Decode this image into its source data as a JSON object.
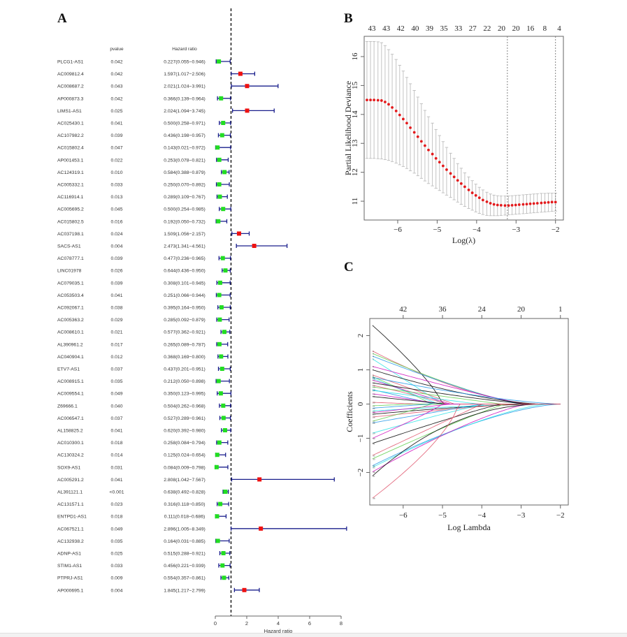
{
  "figure": {
    "panel_labels": {
      "a": "A",
      "b": "B",
      "c": "C"
    },
    "colors": {
      "protective": "#22dd22",
      "risk": "#ee1111",
      "ci_line": "#1a1f8c",
      "reference_line": "#111111",
      "cv_points": "#e31a1c",
      "cv_errorbars": "#bdbdbd",
      "axis": "#555555"
    }
  },
  "chart_data": [
    {
      "id": "forest",
      "type": "scatter",
      "subtype": "forest-plot",
      "title": "",
      "col_headers": {
        "gene": "",
        "pvalue": "pvalue",
        "hr": "Hazard ratio"
      },
      "xlabel": "Hazard ratio",
      "xlim": [
        0,
        8
      ],
      "xticks": [
        0,
        2,
        4,
        6,
        8
      ],
      "reference_line": 1,
      "rows": [
        {
          "gene": "PLCG1-AS1",
          "p": "0.042",
          "hr_text": "0.227(0.055−0.946)",
          "hr": 0.227,
          "lo": 0.055,
          "hi": 0.946
        },
        {
          "gene": "AC009812.4",
          "p": "0.042",
          "hr_text": "1.597(1.017−2.506)",
          "hr": 1.597,
          "lo": 1.017,
          "hi": 2.506
        },
        {
          "gene": "AC008687.2",
          "p": "0.043",
          "hr_text": "2.021(1.024−3.991)",
          "hr": 2.021,
          "lo": 1.024,
          "hi": 3.991
        },
        {
          "gene": "AP000873.3",
          "p": "0.042",
          "hr_text": "0.366(0.139−0.964)",
          "hr": 0.366,
          "lo": 0.139,
          "hi": 0.964
        },
        {
          "gene": "LIMS1-AS1",
          "p": "0.025",
          "hr_text": "2.024(1.094−3.745)",
          "hr": 2.024,
          "lo": 1.094,
          "hi": 3.745
        },
        {
          "gene": "AC025430.1",
          "p": "0.041",
          "hr_text": "0.500(0.258−0.971)",
          "hr": 0.5,
          "lo": 0.258,
          "hi": 0.971
        },
        {
          "gene": "AC107982.2",
          "p": "0.039",
          "hr_text": "0.436(0.198−0.957)",
          "hr": 0.436,
          "lo": 0.198,
          "hi": 0.957
        },
        {
          "gene": "AC015802.4",
          "p": "0.047",
          "hr_text": "0.143(0.021−0.972)",
          "hr": 0.143,
          "lo": 0.021,
          "hi": 0.972
        },
        {
          "gene": "AP001453.1",
          "p": "0.022",
          "hr_text": "0.253(0.078−0.821)",
          "hr": 0.253,
          "lo": 0.078,
          "hi": 0.821
        },
        {
          "gene": "AC124319.1",
          "p": "0.010",
          "hr_text": "0.584(0.388−0.879)",
          "hr": 0.584,
          "lo": 0.388,
          "hi": 0.879
        },
        {
          "gene": "AC005332.1",
          "p": "0.033",
          "hr_text": "0.250(0.070−0.892)",
          "hr": 0.25,
          "lo": 0.07,
          "hi": 0.892
        },
        {
          "gene": "AC116914.1",
          "p": "0.013",
          "hr_text": "0.289(0.109−0.767)",
          "hr": 0.289,
          "lo": 0.109,
          "hi": 0.767
        },
        {
          "gene": "AC005695.2",
          "p": "0.045",
          "hr_text": "0.500(0.254−0.985)",
          "hr": 0.5,
          "lo": 0.254,
          "hi": 0.985
        },
        {
          "gene": "AC015802.5",
          "p": "0.016",
          "hr_text": "0.192(0.050−0.732)",
          "hr": 0.192,
          "lo": 0.05,
          "hi": 0.732
        },
        {
          "gene": "AC037198.1",
          "p": "0.024",
          "hr_text": "1.509(1.056−2.157)",
          "hr": 1.509,
          "lo": 1.056,
          "hi": 2.157
        },
        {
          "gene": "SACS-AS1",
          "p": "0.004",
          "hr_text": "2.473(1.341−4.561)",
          "hr": 2.473,
          "lo": 1.341,
          "hi": 4.561
        },
        {
          "gene": "AC078777.1",
          "p": "0.039",
          "hr_text": "0.477(0.236−0.965)",
          "hr": 0.477,
          "lo": 0.236,
          "hi": 0.965
        },
        {
          "gene": "LINC01978",
          "p": "0.026",
          "hr_text": "0.644(0.436−0.950)",
          "hr": 0.644,
          "lo": 0.436,
          "hi": 0.95
        },
        {
          "gene": "AC079035.1",
          "p": "0.039",
          "hr_text": "0.308(0.101−0.945)",
          "hr": 0.308,
          "lo": 0.101,
          "hi": 0.945
        },
        {
          "gene": "AC053503.4",
          "p": "0.041",
          "hr_text": "0.251(0.066−0.944)",
          "hr": 0.251,
          "lo": 0.066,
          "hi": 0.944
        },
        {
          "gene": "AC092067.1",
          "p": "0.038",
          "hr_text": "0.395(0.164−0.950)",
          "hr": 0.395,
          "lo": 0.164,
          "hi": 0.95
        },
        {
          "gene": "AC005363.2",
          "p": "0.029",
          "hr_text": "0.285(0.092−0.879)",
          "hr": 0.285,
          "lo": 0.092,
          "hi": 0.879
        },
        {
          "gene": "AC008610.1",
          "p": "0.021",
          "hr_text": "0.577(0.362−0.921)",
          "hr": 0.577,
          "lo": 0.362,
          "hi": 0.921
        },
        {
          "gene": "AL390961.2",
          "p": "0.017",
          "hr_text": "0.265(0.089−0.787)",
          "hr": 0.265,
          "lo": 0.089,
          "hi": 0.787
        },
        {
          "gene": "AC040904.1",
          "p": "0.012",
          "hr_text": "0.368(0.169−0.800)",
          "hr": 0.368,
          "lo": 0.169,
          "hi": 0.8
        },
        {
          "gene": "ETV7-AS1",
          "p": "0.037",
          "hr_text": "0.437(0.201−0.951)",
          "hr": 0.437,
          "lo": 0.201,
          "hi": 0.951
        },
        {
          "gene": "AC008915.1",
          "p": "0.035",
          "hr_text": "0.212(0.050−0.898)",
          "hr": 0.212,
          "lo": 0.05,
          "hi": 0.898
        },
        {
          "gene": "AC009554.1",
          "p": "0.049",
          "hr_text": "0.350(0.123−0.995)",
          "hr": 0.35,
          "lo": 0.123,
          "hi": 0.995
        },
        {
          "gene": "Z69666.1",
          "p": "0.040",
          "hr_text": "0.504(0.262−0.968)",
          "hr": 0.504,
          "lo": 0.262,
          "hi": 0.968
        },
        {
          "gene": "AC006547.1",
          "p": "0.037",
          "hr_text": "0.527(0.289−0.961)",
          "hr": 0.527,
          "lo": 0.289,
          "hi": 0.961
        },
        {
          "gene": "AL158825.2",
          "p": "0.041",
          "hr_text": "0.620(0.392−0.980)",
          "hr": 0.62,
          "lo": 0.392,
          "hi": 0.98
        },
        {
          "gene": "AC010300.1",
          "p": "0.018",
          "hr_text": "0.258(0.084−0.794)",
          "hr": 0.258,
          "lo": 0.084,
          "hi": 0.794
        },
        {
          "gene": "AC130324.2",
          "p": "0.014",
          "hr_text": "0.125(0.024−0.654)",
          "hr": 0.125,
          "lo": 0.024,
          "hi": 0.654
        },
        {
          "gene": "SOX9-AS1",
          "p": "0.031",
          "hr_text": "0.084(0.009−0.798)",
          "hr": 0.084,
          "lo": 0.009,
          "hi": 0.798
        },
        {
          "gene": "AC005291.2",
          "p": "0.041",
          "hr_text": "2.808(1.042−7.567)",
          "hr": 2.808,
          "lo": 1.042,
          "hi": 7.567
        },
        {
          "gene": "AL391121.1",
          "p": "<0.001",
          "hr_text": "0.638(0.492−0.828)",
          "hr": 0.638,
          "lo": 0.492,
          "hi": 0.828
        },
        {
          "gene": "AC131571.1",
          "p": "0.023",
          "hr_text": "0.316(0.118−0.850)",
          "hr": 0.316,
          "lo": 0.118,
          "hi": 0.85
        },
        {
          "gene": "ENTPD1-AS1",
          "p": "0.018",
          "hr_text": "0.111(0.018−0.686)",
          "hr": 0.111,
          "lo": 0.018,
          "hi": 0.686
        },
        {
          "gene": "AC067521.1",
          "p": "0.049",
          "hr_text": "2.896(1.005−8.349)",
          "hr": 2.896,
          "lo": 1.005,
          "hi": 8.349
        },
        {
          "gene": "AC132938.2",
          "p": "0.035",
          "hr_text": "0.164(0.031−0.885)",
          "hr": 0.164,
          "lo": 0.031,
          "hi": 0.885
        },
        {
          "gene": "ADNP-AS1",
          "p": "0.025",
          "hr_text": "0.515(0.288−0.921)",
          "hr": 0.515,
          "lo": 0.288,
          "hi": 0.921
        },
        {
          "gene": "STIM1-AS1",
          "p": "0.033",
          "hr_text": "0.456(0.221−0.939)",
          "hr": 0.456,
          "lo": 0.221,
          "hi": 0.939
        },
        {
          "gene": "PTPRJ-AS1",
          "p": "0.009",
          "hr_text": "0.554(0.357−0.861)",
          "hr": 0.554,
          "lo": 0.357,
          "hi": 0.861
        },
        {
          "gene": "AP000695.1",
          "p": "0.004",
          "hr_text": "1.845(1.217−2.799)",
          "hr": 1.845,
          "lo": 1.217,
          "hi": 2.799
        }
      ]
    },
    {
      "id": "cv",
      "type": "scatter",
      "subtype": "lasso-cv-errorbar",
      "title": "",
      "xlabel": "Log(λ)",
      "ylabel": "Partial Likelihood Deviance",
      "xlim": [
        -6.85,
        -1.8
      ],
      "ylim": [
        10.35,
        16.7
      ],
      "xticks": [
        -6,
        -5,
        -4,
        -3,
        -2
      ],
      "yticks": [
        11,
        12,
        13,
        14,
        15,
        16
      ],
      "top_labels": [
        "43",
        "43",
        "42",
        "40",
        "39",
        "35",
        "33",
        "27",
        "22",
        "20",
        "20",
        "16",
        "8",
        "4"
      ],
      "vlines": [
        -3.22,
        -2.0
      ],
      "loglambda": [
        -6.78,
        -6.69,
        -6.6,
        -6.5,
        -6.41,
        -6.32,
        -6.23,
        -6.14,
        -6.04,
        -5.95,
        -5.86,
        -5.77,
        -5.68,
        -5.58,
        -5.49,
        -5.4,
        -5.31,
        -5.22,
        -5.12,
        -5.03,
        -4.94,
        -4.85,
        -4.76,
        -4.66,
        -4.57,
        -4.48,
        -4.39,
        -4.3,
        -4.2,
        -4.11,
        -4.02,
        -3.93,
        -3.84,
        -3.74,
        -3.65,
        -3.56,
        -3.47,
        -3.38,
        -3.28,
        -3.19,
        -3.1,
        -3.01,
        -2.92,
        -2.82,
        -2.73,
        -2.64,
        -2.55,
        -2.46,
        -2.36,
        -2.27,
        -2.18,
        -2.09,
        -2.0
      ],
      "deviance": [
        14.5,
        14.5,
        14.5,
        14.49,
        14.48,
        14.43,
        14.35,
        14.24,
        14.12,
        13.98,
        13.84,
        13.7,
        13.54,
        13.38,
        13.23,
        13.07,
        12.92,
        12.77,
        12.63,
        12.48,
        12.35,
        12.22,
        12.09,
        11.96,
        11.84,
        11.72,
        11.61,
        11.5,
        11.39,
        11.29,
        11.2,
        11.12,
        11.04,
        10.98,
        10.93,
        10.89,
        10.87,
        10.86,
        10.85,
        10.85,
        10.86,
        10.87,
        10.88,
        10.89,
        10.9,
        10.91,
        10.92,
        10.93,
        10.94,
        10.95,
        10.96,
        10.97,
        10.97
      ],
      "upper": [
        16.52,
        16.52,
        16.52,
        16.51,
        16.48,
        16.38,
        16.24,
        16.08,
        15.9,
        15.7,
        15.5,
        15.28,
        15.06,
        14.83,
        14.6,
        14.37,
        14.14,
        13.92,
        13.7,
        13.48,
        13.27,
        13.06,
        12.86,
        12.66,
        12.48,
        12.3,
        12.14,
        11.98,
        11.84,
        11.71,
        11.59,
        11.48,
        11.39,
        11.31,
        11.25,
        11.21,
        11.19,
        11.18,
        11.18,
        11.18,
        11.19,
        11.2,
        11.21,
        11.22,
        11.23,
        11.24,
        11.25,
        11.26,
        11.27,
        11.27,
        11.28,
        11.28,
        11.28
      ],
      "lower": [
        12.48,
        12.48,
        12.48,
        12.47,
        12.46,
        12.44,
        12.41,
        12.37,
        12.32,
        12.26,
        12.2,
        12.13,
        12.05,
        11.97,
        11.88,
        11.79,
        11.7,
        11.61,
        11.53,
        11.45,
        11.37,
        11.29,
        11.21,
        11.13,
        11.05,
        10.97,
        10.89,
        10.82,
        10.75,
        10.69,
        10.63,
        10.58,
        10.54,
        10.51,
        10.5,
        10.5,
        10.5,
        10.51,
        10.52,
        10.53,
        10.54,
        10.55,
        10.56,
        10.57,
        10.58,
        10.59,
        10.6,
        10.61,
        10.62,
        10.63,
        10.64,
        10.65,
        10.66
      ]
    },
    {
      "id": "coef",
      "type": "line",
      "subtype": "lasso-coefficient-paths",
      "title": "",
      "xlabel": "Log Lambda",
      "ylabel": "Coefficients",
      "xlim": [
        -6.85,
        -1.8
      ],
      "ylim": [
        -2.95,
        2.5
      ],
      "xticks": [
        -6,
        -5,
        -4,
        -3,
        -2
      ],
      "yticks": [
        -2,
        -1,
        0,
        1,
        2
      ],
      "top_ticks": [
        -6,
        -5,
        -4,
        -3,
        -2
      ],
      "top_labels": [
        "42",
        "36",
        "24",
        "20",
        "1"
      ],
      "palette": [
        "#000000",
        "#df536b",
        "#61d04f",
        "#2297e6",
        "#28e2e5",
        "#cd0bbc"
      ],
      "series": [
        {
          "start": 2.3,
          "zero_at": -5.0,
          "shape": 0.8
        },
        {
          "start": 1.55,
          "zero_at": -2.6,
          "shape": 1.6
        },
        {
          "start": 1.48,
          "zero_at": -2.9,
          "shape": 1.3
        },
        {
          "start": 1.4,
          "zero_at": -3.0,
          "shape": 1.2
        },
        {
          "start": 1.32,
          "zero_at": -5.0,
          "shape": 1.0
        },
        {
          "start": 1.1,
          "zero_at": -2.9,
          "shape": 1.1
        },
        {
          "start": 1.0,
          "zero_at": -2.5,
          "shape": 1.5
        },
        {
          "start": 0.85,
          "zero_at": -4.7,
          "shape": 1.0
        },
        {
          "start": 0.8,
          "zero_at": -5.3,
          "shape": 0.9
        },
        {
          "start": 0.78,
          "zero_at": -2.0,
          "shape": 1.4
        },
        {
          "start": 0.75,
          "zero_at": -5.1,
          "shape": 1.0
        },
        {
          "start": 0.7,
          "zero_at": -4.8,
          "shape": 1.0
        },
        {
          "start": 0.62,
          "zero_at": -2.8,
          "shape": 1.2
        },
        {
          "start": 0.55,
          "zero_at": -4.9,
          "shape": 0.9
        },
        {
          "start": 0.5,
          "zero_at": -3.5,
          "shape": 1.0
        },
        {
          "start": 0.42,
          "zero_at": -5.2,
          "shape": 1.0
        },
        {
          "start": 0.4,
          "zero_at": -4.1,
          "shape": 1.0
        },
        {
          "start": 0.3,
          "zero_at": -5.0,
          "shape": 1.0
        },
        {
          "start": 0.22,
          "zero_at": -4.9,
          "shape": 1.0
        },
        {
          "start": 0.05,
          "zero_at": -5.6,
          "shape": 1.0
        },
        {
          "start": -0.05,
          "zero_at": -5.7,
          "shape": 1.0
        },
        {
          "start": -0.12,
          "zero_at": -5.3,
          "shape": 1.0
        },
        {
          "start": -0.2,
          "zero_at": -2.5,
          "shape": 1.4
        },
        {
          "start": -0.25,
          "zero_at": -4.8,
          "shape": 1.0
        },
        {
          "start": -0.3,
          "zero_at": -2.4,
          "shape": 1.6
        },
        {
          "start": -0.38,
          "zero_at": -3.1,
          "shape": 1.2
        },
        {
          "start": -0.5,
          "zero_at": -5.3,
          "shape": 0.9
        },
        {
          "start": -0.55,
          "zero_at": -4.0,
          "shape": 1.0
        },
        {
          "start": -0.85,
          "zero_at": -3.9,
          "shape": 1.1
        },
        {
          "start": -1.0,
          "zero_at": -5.0,
          "shape": 0.9
        },
        {
          "start": -1.15,
          "zero_at": -3.5,
          "shape": 1.1
        },
        {
          "start": -1.5,
          "zero_at": -4.0,
          "shape": 1.0
        },
        {
          "start": -1.6,
          "zero_at": -3.4,
          "shape": 1.1
        },
        {
          "start": -1.8,
          "zero_at": -2.0,
          "shape": 1.5
        },
        {
          "start": -1.85,
          "zero_at": -2.3,
          "shape": 1.4
        },
        {
          "start": -1.98,
          "zero_at": -2.8,
          "shape": 1.3
        },
        {
          "start": -2.1,
          "zero_at": -2.3,
          "shape": 2.2
        },
        {
          "start": -2.75,
          "zero_at": -4.6,
          "shape": 0.7
        }
      ]
    }
  ]
}
